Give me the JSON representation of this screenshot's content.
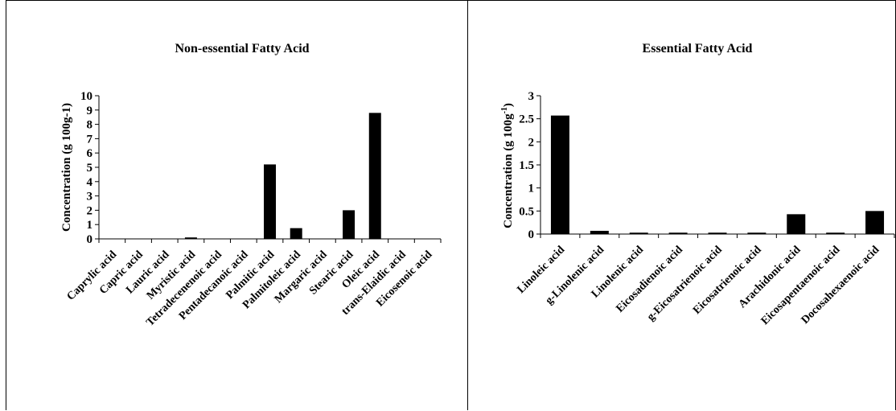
{
  "chart_data": [
    {
      "type": "bar",
      "title": "Non-essential Fatty Acid",
      "xlabel": "",
      "ylabel": "Concentration (g 100g-1)",
      "ylim": [
        0,
        10
      ],
      "yticks": [
        "0",
        "1",
        "2",
        "3",
        "4",
        "5",
        "6",
        "7",
        "8",
        "9",
        "10"
      ],
      "grid": false,
      "categories": [
        "Caprylic acid",
        "Capric acid",
        "Lauric acid",
        "Myristic acid",
        "Tetradecenenoic acid",
        "Pentadecanoic acid",
        "Palmitic acid",
        "Palmitoleic acid",
        "Margaric acid",
        "Stearic acid",
        "Oleic acid",
        "trans-Elaidic acid",
        "Eicosenoic acid"
      ],
      "values": [
        0,
        0,
        0,
        0.1,
        0,
        0,
        5.2,
        0.75,
        0,
        2.0,
        8.8,
        0,
        0
      ]
    },
    {
      "type": "bar",
      "title": "Essential Fatty Acid",
      "xlabel": "",
      "ylabel": "Concentration (g 100g",
      "ylabel_superscript": "-1",
      "ylabel_suffix": ")",
      "ylim": [
        0,
        3
      ],
      "yticks": [
        "0",
        "0.5",
        "1",
        "1.5",
        "2",
        "2.5",
        "3"
      ],
      "grid": false,
      "categories": [
        "Linoleic acid",
        "g-Linolenic acid",
        "Linolenic acid",
        "Eicosadienoic acid",
        "g-Eicosatrienoic acid",
        "Eicosatrienoic acid",
        "Arachidonic acid",
        "Eicosapentaenoic acid",
        "Docosahexaenoic acid"
      ],
      "values": [
        2.57,
        0.07,
        0.03,
        0.03,
        0.03,
        0.03,
        0.43,
        0.03,
        0.5
      ]
    }
  ]
}
